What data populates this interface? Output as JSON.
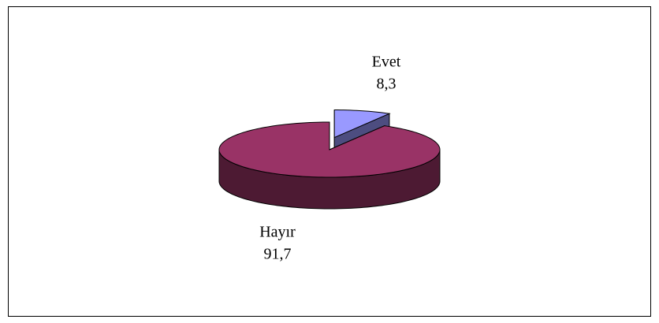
{
  "chart_data": {
    "type": "pie",
    "categories": [
      "Evet",
      "Hayır"
    ],
    "values": [
      8.3,
      91.7
    ],
    "value_labels": [
      "8,3",
      "91,7"
    ],
    "colors": [
      "#9999ff",
      "#993366"
    ]
  }
}
